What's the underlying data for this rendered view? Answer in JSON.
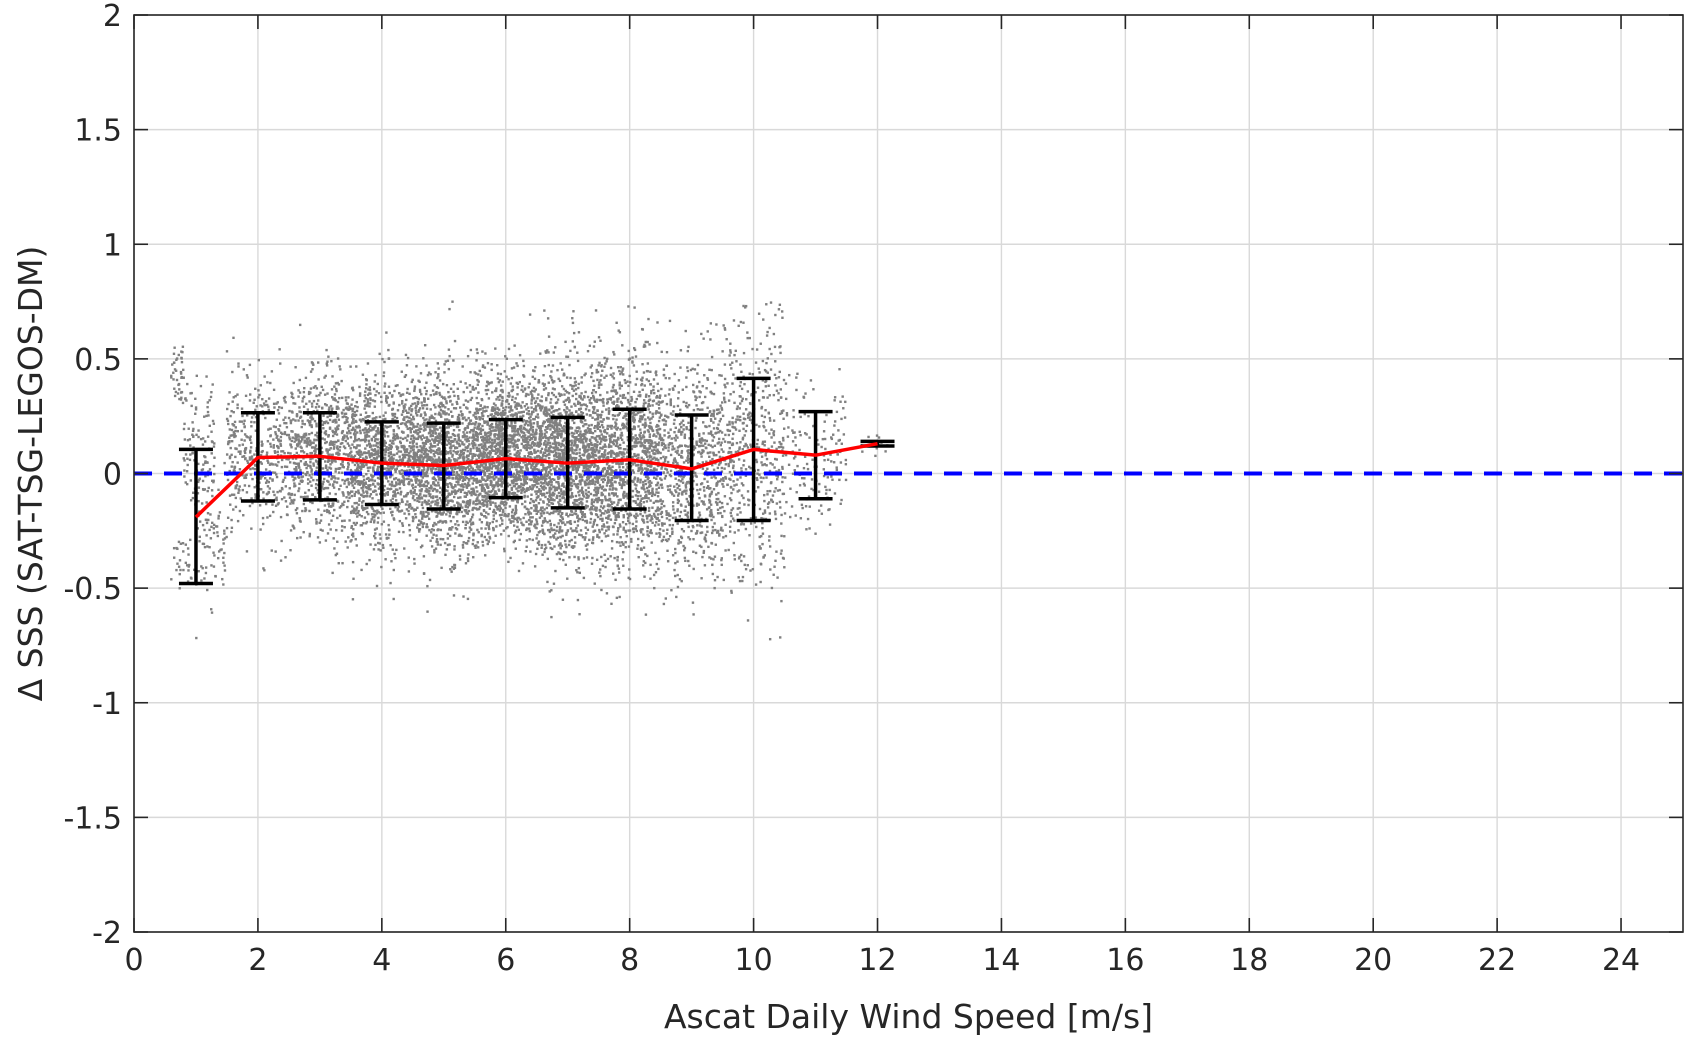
{
  "chart_data": {
    "type": "scatter",
    "title": "",
    "xlabel": "Ascat Daily Wind Speed [m/s]",
    "ylabel": "Δ SSS (SAT-TSG-LEGOS-DM)",
    "xlim": [
      0,
      25
    ],
    "ylim": [
      -2,
      2
    ],
    "xticks": [
      0,
      2,
      4,
      6,
      8,
      10,
      12,
      14,
      16,
      18,
      20,
      22,
      24
    ],
    "yticks": [
      -2,
      -1.5,
      -1,
      -0.5,
      0,
      0.5,
      1,
      1.5,
      2
    ],
    "xtick_labels": [
      "0",
      "2",
      "4",
      "6",
      "8",
      "10",
      "12",
      "14",
      "16",
      "18",
      "20",
      "22",
      "24"
    ],
    "ytick_labels": [
      "-2",
      "-1.5",
      "-1",
      "-0.5",
      "0",
      "0.5",
      "1",
      "1.5",
      "2"
    ],
    "grid": true,
    "colors": {
      "scatter": "#808080",
      "mean_line": "#ff0000",
      "error_bars": "#000000",
      "zero_line": "#0000ff",
      "grid": "#d9d9d9",
      "axes": "#262626"
    },
    "scatter_clusters": [
      {
        "x_range": [
          0.6,
          0.8
        ],
        "y_mean": 0.45,
        "y_std": 0.08,
        "n": 40
      },
      {
        "x_range": [
          0.6,
          1.0
        ],
        "y_mean": -0.38,
        "y_std": 0.05,
        "n": 30
      },
      {
        "x_range": [
          0.8,
          1.3
        ],
        "y_mean": 0.1,
        "y_std": 0.15,
        "n": 120
      },
      {
        "x_range": [
          1.0,
          1.5
        ],
        "y_mean": -0.3,
        "y_std": 0.12,
        "n": 70
      },
      {
        "x_range": [
          1.5,
          2.5
        ],
        "y_mean": 0.07,
        "y_std": 0.17,
        "n": 400
      },
      {
        "x_range": [
          2.5,
          3.5
        ],
        "y_mean": 0.08,
        "y_std": 0.18,
        "n": 700
      },
      {
        "x_range": [
          3.5,
          4.5
        ],
        "y_mean": 0.05,
        "y_std": 0.18,
        "n": 1000
      },
      {
        "x_range": [
          4.5,
          5.5
        ],
        "y_mean": 0.04,
        "y_std": 0.19,
        "n": 1300
      },
      {
        "x_range": [
          5.5,
          6.5
        ],
        "y_mean": 0.07,
        "y_std": 0.17,
        "n": 1500
      },
      {
        "x_range": [
          6.5,
          7.5
        ],
        "y_mean": 0.05,
        "y_std": 0.2,
        "n": 1500
      },
      {
        "x_range": [
          7.5,
          8.5
        ],
        "y_mean": 0.06,
        "y_std": 0.22,
        "n": 1200
      },
      {
        "x_range": [
          8.5,
          9.5
        ],
        "y_mean": 0.02,
        "y_std": 0.23,
        "n": 700
      },
      {
        "x_range": [
          9.5,
          10.5
        ],
        "y_mean": 0.1,
        "y_std": 0.28,
        "n": 500
      },
      {
        "x_range": [
          10.5,
          11.5
        ],
        "y_mean": 0.08,
        "y_std": 0.17,
        "n": 150
      },
      {
        "x_range": [
          11.5,
          12.2
        ],
        "y_mean": 0.13,
        "y_std": 0.02,
        "n": 10
      }
    ],
    "series": [
      {
        "name": "bin mean",
        "x": [
          1,
          2,
          3,
          4,
          5,
          6,
          7,
          8,
          9,
          10,
          11,
          12
        ],
        "y": [
          -0.19,
          0.07,
          0.075,
          0.045,
          0.035,
          0.065,
          0.045,
          0.06,
          0.02,
          0.105,
          0.08,
          0.13
        ]
      },
      {
        "name": "bin std",
        "x": [
          1,
          2,
          3,
          4,
          5,
          6,
          7,
          8,
          9,
          10,
          11,
          12
        ],
        "lower": [
          -0.48,
          -0.12,
          -0.115,
          -0.135,
          -0.155,
          -0.105,
          -0.15,
          -0.155,
          -0.205,
          -0.205,
          -0.11,
          0.12
        ],
        "upper": [
          0.105,
          0.265,
          0.265,
          0.225,
          0.22,
          0.235,
          0.245,
          0.28,
          0.255,
          0.415,
          0.27,
          0.14
        ]
      },
      {
        "name": "zero line",
        "x": [
          0,
          25
        ],
        "y": [
          0,
          0
        ]
      }
    ]
  }
}
